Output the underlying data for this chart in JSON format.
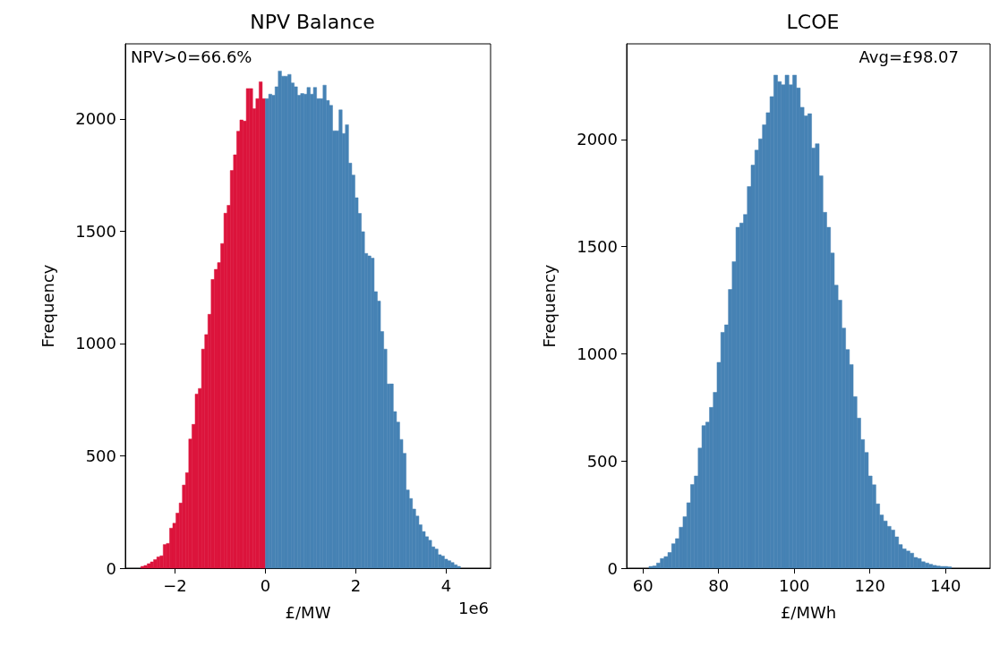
{
  "chart_data": [
    {
      "type": "histogram",
      "title": "NPV Balance",
      "xlabel": "£/MW",
      "ylabel": "Frequency",
      "bins": [
        -2.757,
        -2.687,
        -2.616,
        -2.545,
        -2.475,
        -2.404,
        -2.333,
        -2.262,
        -2.192,
        -2.121,
        -2.05,
        -1.98,
        -1.909,
        -1.838,
        -1.768,
        -1.697,
        -1.626,
        -1.555,
        -1.485,
        -1.414,
        -1.343,
        -1.273,
        -1.202,
        -1.131,
        -1.061,
        -0.99,
        -0.919,
        -0.848,
        -0.778,
        -0.707,
        -0.636,
        -0.566,
        -0.495,
        -0.424,
        -0.354,
        -0.283,
        -0.212,
        -0.141,
        -0.071,
        0,
        0.071,
        0.141,
        0.212,
        0.283,
        0.354,
        0.424,
        0.495,
        0.566,
        0.636,
        0.707,
        0.778,
        0.848,
        0.919,
        0.99,
        1.061,
        1.131,
        1.202,
        1.273,
        1.343,
        1.414,
        1.485,
        1.555,
        1.626,
        1.697,
        1.768,
        1.838,
        1.909,
        1.98,
        2.05,
        2.121,
        2.192,
        2.262,
        2.333,
        2.404,
        2.475,
        2.545,
        2.616,
        2.687,
        2.757,
        2.828,
        2.899,
        2.969,
        3.04,
        3.111,
        3.182,
        3.252,
        3.323,
        3.394,
        3.464,
        3.535,
        3.606,
        3.676,
        3.747,
        3.818,
        3.889,
        3.959,
        4.03,
        4.101,
        4.171,
        4.242,
        4.313
      ],
      "values": [
        8,
        12,
        20,
        28,
        38,
        50,
        55,
        105,
        110,
        178,
        200,
        245,
        290,
        370,
        425,
        575,
        640,
        775,
        800,
        975,
        1040,
        1130,
        1285,
        1330,
        1360,
        1445,
        1580,
        1615,
        1770,
        1840,
        1945,
        1995,
        1990,
        2135,
        2135,
        2045,
        2090,
        2165,
        2090,
        2090,
        2110,
        2105,
        2143,
        2213,
        2190,
        2190,
        2198,
        2160,
        2143,
        2105,
        2113,
        2110,
        2140,
        2110,
        2140,
        2090,
        2090,
        2150,
        2082,
        2060,
        1947,
        1947,
        2040,
        1935,
        1974,
        1803,
        1750,
        1649,
        1579,
        1498,
        1401,
        1390,
        1380,
        1231,
        1189,
        1053,
        975,
        820,
        820,
        697,
        650,
        573,
        511,
        348,
        310,
        263,
        232,
        193,
        163,
        140,
        124,
        95,
        85,
        60,
        54,
        40,
        33,
        25,
        15,
        8
      ],
      "colors": [
        "#dc143c",
        "#dc143c",
        "#dc143c",
        "#dc143c",
        "#dc143c",
        "#dc143c",
        "#dc143c",
        "#dc143c",
        "#dc143c",
        "#dc143c",
        "#dc143c",
        "#dc143c",
        "#dc143c",
        "#dc143c",
        "#dc143c",
        "#dc143c",
        "#dc143c",
        "#dc143c",
        "#dc143c",
        "#dc143c",
        "#dc143c",
        "#dc143c",
        "#dc143c",
        "#dc143c",
        "#dc143c",
        "#dc143c",
        "#dc143c",
        "#dc143c",
        "#dc143c",
        "#dc143c",
        "#dc143c",
        "#dc143c",
        "#dc143c",
        "#dc143c",
        "#dc143c",
        "#dc143c",
        "#dc143c",
        "#dc143c",
        "#dc143c",
        "#4682b4",
        "#4682b4",
        "#4682b4",
        "#4682b4",
        "#4682b4",
        "#4682b4",
        "#4682b4",
        "#4682b4",
        "#4682b4",
        "#4682b4",
        "#4682b4",
        "#4682b4",
        "#4682b4",
        "#4682b4",
        "#4682b4",
        "#4682b4",
        "#4682b4",
        "#4682b4",
        "#4682b4",
        "#4682b4",
        "#4682b4",
        "#4682b4",
        "#4682b4",
        "#4682b4",
        "#4682b4",
        "#4682b4",
        "#4682b4",
        "#4682b4",
        "#4682b4",
        "#4682b4",
        "#4682b4",
        "#4682b4",
        "#4682b4",
        "#4682b4",
        "#4682b4",
        "#4682b4",
        "#4682b4",
        "#4682b4",
        "#4682b4",
        "#4682b4",
        "#4682b4",
        "#4682b4",
        "#4682b4",
        "#4682b4",
        "#4682b4",
        "#4682b4",
        "#4682b4",
        "#4682b4",
        "#4682b4",
        "#4682b4",
        "#4682b4",
        "#4682b4",
        "#4682b4",
        "#4682b4",
        "#4682b4",
        "#4682b4",
        "#4682b4",
        "#4682b4",
        "#4682b4",
        "#4682b4",
        "#4682b4"
      ],
      "xlim": [
        -3.1,
        4.98
      ],
      "xticks": [
        {
          "value": -2,
          "label": "−2"
        },
        0,
        2,
        4
      ],
      "ylim": [
        0,
        2334
      ],
      "yticks": [
        0,
        500,
        1000,
        1500,
        2000
      ],
      "annotations": [
        "NPV>0=66.6%",
        "1e6"
      ]
    },
    {
      "type": "histogram",
      "title": "LCOE",
      "xlabel": "£/MWh",
      "ylabel": "Frequency",
      "color": "#4682b4",
      "bins": [
        61.6,
        62.6,
        63.6,
        64.6,
        65.6,
        66.6,
        67.6,
        68.6,
        69.6,
        70.6,
        71.6,
        72.6,
        73.6,
        74.6,
        75.6,
        76.6,
        77.6,
        78.6,
        79.6,
        80.6,
        81.6,
        82.6,
        83.6,
        84.6,
        85.6,
        86.6,
        87.6,
        88.6,
        89.6,
        90.6,
        91.6,
        92.6,
        93.6,
        94.6,
        95.6,
        96.6,
        97.6,
        98.6,
        99.6,
        100.6,
        101.6,
        102.6,
        103.6,
        104.6,
        105.6,
        106.6,
        107.6,
        108.6,
        109.6,
        110.6,
        111.6,
        112.6,
        113.6,
        114.6,
        115.6,
        116.6,
        117.6,
        118.6,
        119.6,
        120.6,
        121.6,
        122.6,
        123.6,
        124.6,
        125.6,
        126.6,
        127.6,
        128.6,
        129.6,
        130.6,
        131.6,
        132.6,
        133.6,
        134.6,
        135.6,
        136.6,
        137.6,
        138.6,
        139.6,
        140.6,
        141.6
      ],
      "values": [
        8,
        10,
        24,
        45,
        54,
        73,
        114,
        138,
        191,
        240,
        305,
        390,
        430,
        560,
        665,
        681,
        750,
        820,
        960,
        1100,
        1135,
        1300,
        1430,
        1590,
        1610,
        1650,
        1780,
        1880,
        1950,
        2003,
        2068,
        2125,
        2200,
        2300,
        2270,
        2255,
        2300,
        2255,
        2300,
        2240,
        2150,
        2110,
        2120,
        1960,
        1980,
        1830,
        1660,
        1590,
        1470,
        1320,
        1250,
        1120,
        1020,
        950,
        800,
        700,
        600,
        540,
        430,
        389,
        300,
        248,
        220,
        195,
        178,
        146,
        110,
        90,
        80,
        70,
        50,
        45,
        30,
        24,
        18,
        13,
        10,
        8,
        8,
        6
      ],
      "xlim": [
        55.7,
        151.8
      ],
      "xticks": [
        60,
        80,
        100,
        120,
        140
      ],
      "ylim": [
        0,
        2446
      ],
      "yticks": [
        0,
        500,
        1000,
        1500,
        2000
      ],
      "annotations": [
        "Avg=£98.07"
      ]
    }
  ]
}
